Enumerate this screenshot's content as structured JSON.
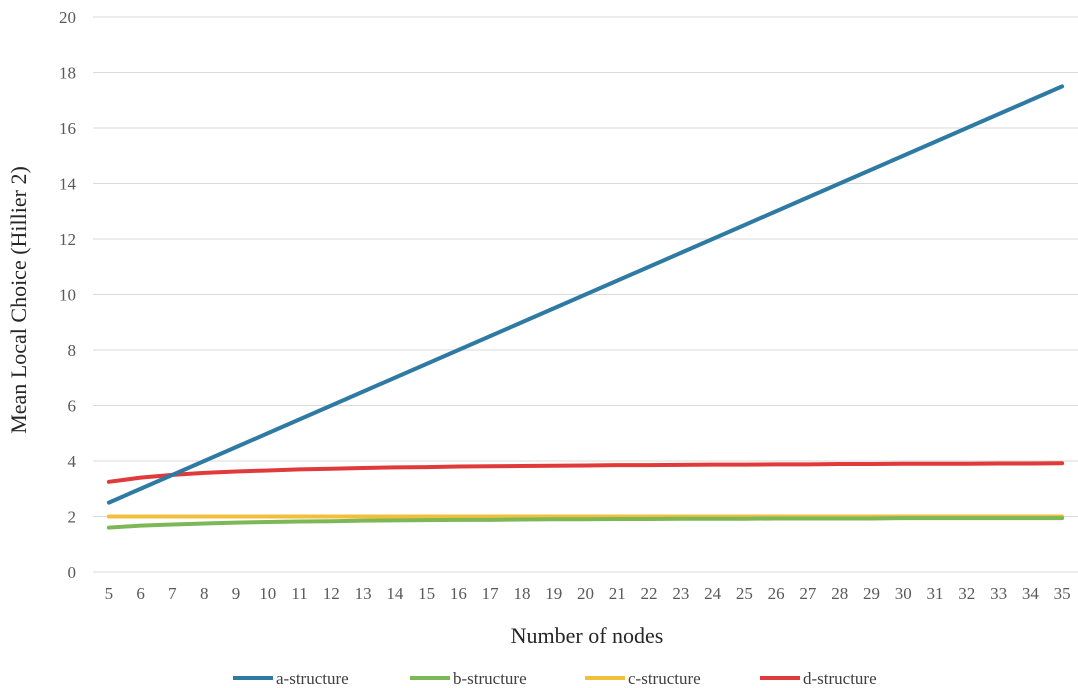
{
  "chart_data": {
    "type": "line",
    "title": "",
    "xlabel": "Number of nodes",
    "ylabel": "Mean Local Choice (Hillier 2)",
    "categories": [
      5,
      6,
      7,
      8,
      9,
      10,
      11,
      12,
      13,
      14,
      15,
      16,
      17,
      18,
      19,
      20,
      21,
      22,
      23,
      24,
      25,
      26,
      27,
      28,
      29,
      30,
      31,
      32,
      33,
      34,
      35
    ],
    "ylim": [
      0,
      20
    ],
    "yticks": [
      0,
      2,
      4,
      6,
      8,
      10,
      12,
      14,
      16,
      18,
      20
    ],
    "grid": "horizontal",
    "legend_position": "bottom",
    "series": [
      {
        "name": "a-structure",
        "color": "#2e7aa3",
        "values": [
          2.5,
          3.0,
          3.5,
          4.0,
          4.5,
          5.0,
          5.5,
          6.0,
          6.5,
          7.0,
          7.5,
          8.0,
          8.5,
          9.0,
          9.5,
          10.0,
          10.5,
          11.0,
          11.5,
          12.0,
          12.5,
          13.0,
          13.5,
          14.0,
          14.5,
          15.0,
          15.5,
          16.0,
          16.5,
          17.0,
          17.5
        ]
      },
      {
        "name": "b-structure",
        "color": "#7db857",
        "values": [
          1.6,
          1.67,
          1.71,
          1.75,
          1.78,
          1.8,
          1.82,
          1.83,
          1.85,
          1.86,
          1.87,
          1.88,
          1.88,
          1.89,
          1.9,
          1.9,
          1.91,
          1.91,
          1.92,
          1.92,
          1.92,
          1.93,
          1.93,
          1.93,
          1.93,
          1.94,
          1.94,
          1.94,
          1.94,
          1.94,
          1.94
        ]
      },
      {
        "name": "c-structure",
        "color": "#f2bf3d",
        "values": [
          2.0,
          2.0,
          2.0,
          2.0,
          2.0,
          2.0,
          2.0,
          2.0,
          2.0,
          2.0,
          2.0,
          2.0,
          2.0,
          2.0,
          2.0,
          2.0,
          2.0,
          2.0,
          2.0,
          2.0,
          2.0,
          2.0,
          2.0,
          2.0,
          2.0,
          2.0,
          2.0,
          2.0,
          2.0,
          2.0,
          2.0
        ]
      },
      {
        "name": "d-structure",
        "color": "#e03a3a",
        "values": [
          3.25,
          3.4,
          3.5,
          3.57,
          3.62,
          3.66,
          3.7,
          3.72,
          3.75,
          3.77,
          3.78,
          3.8,
          3.81,
          3.82,
          3.83,
          3.84,
          3.85,
          3.85,
          3.86,
          3.87,
          3.87,
          3.88,
          3.88,
          3.89,
          3.89,
          3.9,
          3.9,
          3.9,
          3.91,
          3.91,
          3.92
        ]
      }
    ]
  }
}
